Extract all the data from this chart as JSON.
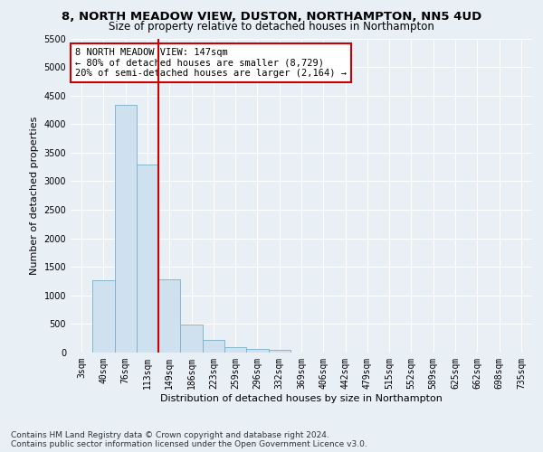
{
  "title": "8, NORTH MEADOW VIEW, DUSTON, NORTHAMPTON, NN5 4UD",
  "subtitle": "Size of property relative to detached houses in Northampton",
  "xlabel": "Distribution of detached houses by size in Northampton",
  "ylabel": "Number of detached properties",
  "bin_labels": [
    "3sqm",
    "40sqm",
    "76sqm",
    "113sqm",
    "149sqm",
    "186sqm",
    "223sqm",
    "259sqm",
    "296sqm",
    "332sqm",
    "369sqm",
    "406sqm",
    "442sqm",
    "479sqm",
    "515sqm",
    "552sqm",
    "589sqm",
    "625sqm",
    "662sqm",
    "698sqm",
    "735sqm"
  ],
  "bar_values": [
    0,
    1270,
    4330,
    3300,
    1280,
    490,
    215,
    90,
    60,
    50,
    0,
    0,
    0,
    0,
    0,
    0,
    0,
    0,
    0,
    0,
    0
  ],
  "bar_color": "#cfe0ee",
  "bar_edge_color": "#7aaec8",
  "vline_index": 4,
  "vline_color": "#cc0000",
  "annotation_text": "8 NORTH MEADOW VIEW: 147sqm\n← 80% of detached houses are smaller (8,729)\n20% of semi-detached houses are larger (2,164) →",
  "annotation_box_color": "#ffffff",
  "annotation_box_edge_color": "#cc0000",
  "ylim": [
    0,
    5500
  ],
  "yticks": [
    0,
    500,
    1000,
    1500,
    2000,
    2500,
    3000,
    3500,
    4000,
    4500,
    5000,
    5500
  ],
  "footnote": "Contains HM Land Registry data © Crown copyright and database right 2024.\nContains public sector information licensed under the Open Government Licence v3.0.",
  "bg_color": "#e8eff5",
  "grid_color": "#ffffff",
  "title_fontsize": 9.5,
  "subtitle_fontsize": 8.5,
  "ylabel_fontsize": 8,
  "xlabel_fontsize": 8,
  "tick_fontsize": 7,
  "annotation_fontsize": 7.5,
  "footnote_fontsize": 6.5
}
